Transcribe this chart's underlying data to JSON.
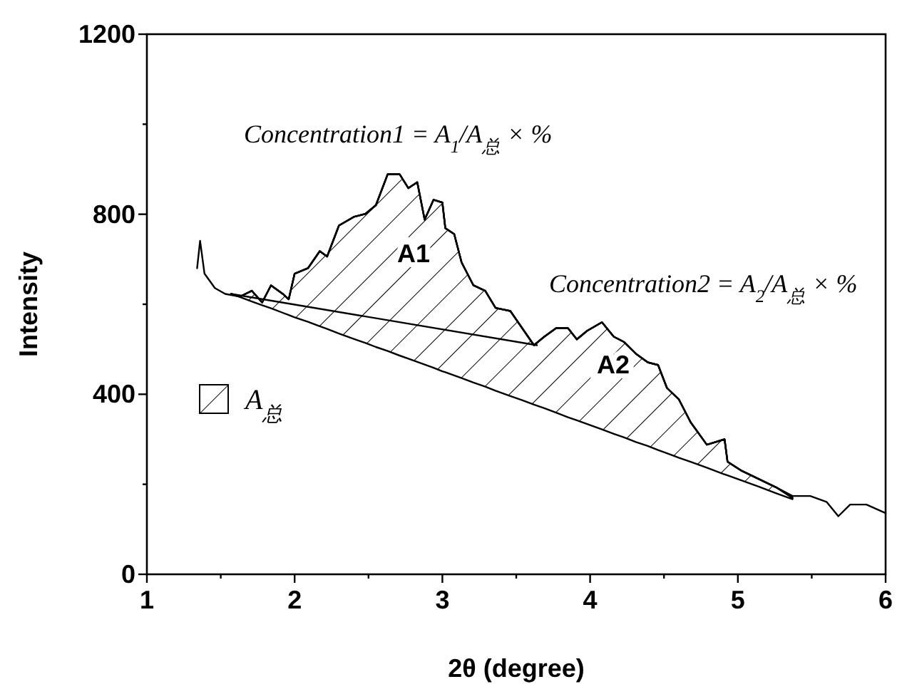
{
  "chart_data": {
    "type": "line",
    "xlabel": "2θ (degree)",
    "ylabel": "Intensity",
    "xlim": [
      1,
      6
    ],
    "ylim": [
      0,
      1200
    ],
    "xticks": [
      1,
      {
        "value": 1.5,
        "label": null
      },
      2,
      {
        "value": 2.5,
        "label": null
      },
      3,
      {
        "value": 3.5,
        "label": null
      },
      4,
      {
        "value": 4.5,
        "label": null
      },
      5,
      {
        "value": 5.5,
        "label": null
      },
      6
    ],
    "yticks": [
      0,
      {
        "value": 200,
        "label": null
      },
      400,
      {
        "value": 600,
        "label": null
      },
      800,
      {
        "value": 1000,
        "label": null
      },
      1200
    ],
    "grid": false,
    "legend": "left",
    "marker": "none",
    "line_style": "solid",
    "series": [
      {
        "color": "#000000",
        "x": [
          1.34,
          1.36,
          1.39,
          1.46,
          1.53,
          1.63,
          1.71,
          1.78,
          1.84,
          1.92,
          1.96,
          2.0,
          2.09,
          2.17,
          2.22,
          2.3,
          2.4,
          2.48,
          2.55,
          2.63,
          2.71,
          2.77,
          2.83,
          2.88,
          2.94,
          3.0,
          3.02,
          3.08,
          3.13,
          3.21,
          3.29,
          3.36,
          3.46,
          3.54,
          3.62,
          3.69,
          3.77,
          3.85,
          3.91,
          3.98,
          4.08,
          4.16,
          4.23,
          4.31,
          4.39,
          4.46,
          4.52,
          4.6,
          4.68,
          4.79,
          4.91,
          4.93,
          5.02,
          5.14,
          5.26,
          5.37,
          5.49,
          5.6,
          5.68,
          5.76,
          5.87,
          6.0
        ],
        "values": [
          680,
          741,
          668,
          636,
          623,
          617,
          630,
          604,
          642,
          623,
          611,
          668,
          680,
          718,
          706,
          775,
          794,
          801,
          820,
          889,
          889,
          858,
          871,
          788,
          832,
          826,
          769,
          756,
          693,
          642,
          630,
          592,
          585,
          547,
          509,
          528,
          547,
          547,
          522,
          541,
          560,
          528,
          516,
          490,
          471,
          465,
          414,
          389,
          338,
          288,
          300,
          250,
          231,
          212,
          193,
          174,
          174,
          161,
          129,
          155,
          155,
          136
        ]
      },
      {
        "name": "A$_{总}$",
        "color": "#000000",
        "x": [
          1.57,
          1.63,
          1.71,
          1.78,
          1.84,
          1.92,
          1.96,
          2.0,
          2.09,
          2.17,
          2.22,
          2.3,
          2.4,
          2.48,
          2.55,
          2.63,
          2.71,
          2.77,
          2.83,
          2.88,
          2.94,
          3.0,
          3.02,
          3.08,
          3.13,
          3.21,
          3.29,
          3.36,
          3.46,
          3.54,
          3.62,
          3.69,
          3.77,
          3.85,
          3.91,
          3.98,
          4.08,
          4.16,
          4.23,
          4.31,
          4.39,
          4.46,
          4.52,
          4.6,
          4.68,
          4.79,
          4.91,
          4.93,
          5.02,
          5.14,
          5.26,
          5.37
        ],
        "values": [
          623,
          617,
          630,
          604,
          642,
          623,
          611,
          668,
          680,
          718,
          706,
          775,
          794,
          801,
          820,
          889,
          889,
          858,
          871,
          788,
          832,
          826,
          769,
          756,
          693,
          642,
          630,
          592,
          585,
          547,
          509,
          528,
          547,
          547,
          522,
          541,
          560,
          528,
          516,
          490,
          471,
          465,
          414,
          389,
          338,
          288,
          300,
          250,
          231,
          212,
          193,
          170
        ],
        "upper": [
          623,
          617,
          630,
          604,
          642,
          623,
          611,
          668,
          680,
          718,
          706,
          775,
          794,
          801,
          820,
          889,
          889,
          858,
          871,
          788,
          832,
          826,
          769,
          756,
          693,
          642,
          630,
          592,
          585,
          547,
          509,
          528,
          547,
          547,
          522,
          541,
          560,
          528,
          516,
          490,
          471,
          465,
          414,
          389,
          338,
          288,
          300,
          250,
          231,
          212,
          193,
          170
        ],
        "lower": [
          623,
          616,
          606,
          598,
          591,
          581,
          576,
          571,
          561,
          551,
          545,
          535,
          523,
          514,
          505,
          496,
          486,
          479,
          472,
          466,
          459,
          451,
          449,
          442,
          436,
          426,
          417,
          408,
          396,
          387,
          377,
          369,
          359,
          349,
          342,
          334,
          322,
          312,
          304,
          294,
          285,
          276,
          269,
          259,
          250,
          237,
          222,
          220,
          209,
          195,
          180,
          167
        ]
      },
      {
        "color": "#000000",
        "x": [
          1.57,
          3.64
        ],
        "values": [
          623,
          509
        ]
      }
    ],
    "annotations": [
      "Concentration1 = A$_{1}$/A$_{总}$ × %",
      "Concentration2 = A$_{2}$/A$_{总}$ × %",
      "A1",
      "A2"
    ]
  }
}
